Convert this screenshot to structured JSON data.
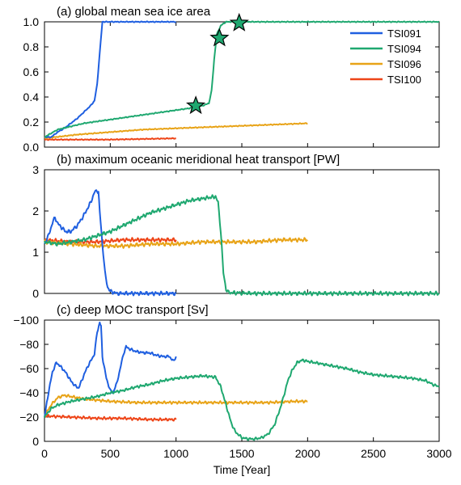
{
  "chart_data": [
    {
      "type": "line",
      "title": "(a) global mean sea ice area",
      "xlim": [
        0,
        3000
      ],
      "ylim": [
        0,
        1
      ],
      "yticks": [
        0,
        0.2,
        0.4,
        0.6,
        0.8,
        1
      ],
      "ytick_labels": [
        "0.0",
        "0.2",
        "0.4",
        "0.6",
        "0.8",
        "1.0"
      ],
      "legend_position": "top-right",
      "series": [
        {
          "name": "TSI091",
          "color": "#1f5fe0",
          "points": [
            [
              0,
              0.08
            ],
            [
              50,
              0.08
            ],
            [
              100,
              0.12
            ],
            [
              150,
              0.15
            ],
            [
              200,
              0.19
            ],
            [
              250,
              0.23
            ],
            [
              300,
              0.28
            ],
            [
              350,
              0.33
            ],
            [
              380,
              0.37
            ],
            [
              400,
              0.5
            ],
            [
              420,
              0.75
            ],
            [
              440,
              1
            ],
            [
              1000,
              1
            ]
          ]
        },
        {
          "name": "TSI094",
          "color": "#1fa870",
          "points": [
            [
              0,
              0.08
            ],
            [
              100,
              0.14
            ],
            [
              300,
              0.19
            ],
            [
              500,
              0.22
            ],
            [
              700,
              0.25
            ],
            [
              900,
              0.28
            ],
            [
              1100,
              0.31
            ],
            [
              1200,
              0.33
            ],
            [
              1250,
              0.35
            ],
            [
              1270,
              0.45
            ],
            [
              1290,
              0.7
            ],
            [
              1310,
              0.9
            ],
            [
              1340,
              0.97
            ],
            [
              1380,
              1
            ],
            [
              3000,
              1
            ]
          ]
        },
        {
          "name": "TSI096",
          "color": "#e8a317",
          "points": [
            [
              0,
              0.07
            ],
            [
              250,
              0.1
            ],
            [
              500,
              0.12
            ],
            [
              750,
              0.14
            ],
            [
              1000,
              0.15
            ],
            [
              1250,
              0.16
            ],
            [
              1500,
              0.17
            ],
            [
              1750,
              0.18
            ],
            [
              2000,
              0.19
            ]
          ]
        },
        {
          "name": "TSI100",
          "color": "#ee4518",
          "points": [
            [
              0,
              0.06
            ],
            [
              500,
              0.06
            ],
            [
              1000,
              0.07
            ]
          ]
        }
      ],
      "markers": [
        {
          "x": 1150,
          "y": 0.33,
          "symbol": "star",
          "color": "#1fa870"
        },
        {
          "x": 1330,
          "y": 0.87,
          "symbol": "star",
          "color": "#1fa870"
        },
        {
          "x": 1480,
          "y": 0.99,
          "symbol": "star",
          "color": "#1fa870"
        }
      ]
    },
    {
      "type": "line",
      "title": "(b) maximum oceanic meridional heat transport [PW]",
      "xlim": [
        0,
        3000
      ],
      "ylim": [
        0,
        3
      ],
      "yticks": [
        0,
        1,
        2,
        3
      ],
      "ytick_labels": [
        "0",
        "1",
        "2",
        "3"
      ],
      "series": [
        {
          "name": "TSI091",
          "color": "#1f5fe0",
          "points": [
            [
              0,
              1.2
            ],
            [
              30,
              1.4
            ],
            [
              60,
              1.7
            ],
            [
              80,
              1.85
            ],
            [
              100,
              1.7
            ],
            [
              130,
              1.6
            ],
            [
              160,
              1.5
            ],
            [
              200,
              1.5
            ],
            [
              250,
              1.65
            ],
            [
              300,
              1.9
            ],
            [
              350,
              2.2
            ],
            [
              380,
              2.45
            ],
            [
              400,
              2.5
            ],
            [
              410,
              2.45
            ],
            [
              420,
              2.0
            ],
            [
              440,
              1.2
            ],
            [
              460,
              0.5
            ],
            [
              480,
              0.15
            ],
            [
              500,
              0.05
            ],
            [
              550,
              0.0
            ],
            [
              1000,
              0.0
            ]
          ]
        },
        {
          "name": "TSI094",
          "color": "#1fa870",
          "points": [
            [
              0,
              1.25
            ],
            [
              100,
              1.2
            ],
            [
              200,
              1.25
            ],
            [
              300,
              1.3
            ],
            [
              400,
              1.4
            ],
            [
              500,
              1.5
            ],
            [
              600,
              1.65
            ],
            [
              700,
              1.8
            ],
            [
              800,
              1.95
            ],
            [
              900,
              2.05
            ],
            [
              1000,
              2.15
            ],
            [
              1100,
              2.25
            ],
            [
              1200,
              2.3
            ],
            [
              1300,
              2.35
            ],
            [
              1320,
              2.2
            ],
            [
              1340,
              1.5
            ],
            [
              1360,
              0.5
            ],
            [
              1380,
              0.1
            ],
            [
              1400,
              0.02
            ],
            [
              1600,
              0.0
            ],
            [
              3000,
              0.0
            ]
          ]
        },
        {
          "name": "TSI096",
          "color": "#e8a317",
          "points": [
            [
              0,
              1.25
            ],
            [
              200,
              1.2
            ],
            [
              400,
              1.15
            ],
            [
              600,
              1.15
            ],
            [
              800,
              1.2
            ],
            [
              1000,
              1.2
            ],
            [
              1200,
              1.25
            ],
            [
              1400,
              1.25
            ],
            [
              1600,
              1.25
            ],
            [
              1800,
              1.3
            ],
            [
              2000,
              1.3
            ]
          ]
        },
        {
          "name": "TSI100",
          "color": "#ee4518",
          "points": [
            [
              0,
              1.3
            ],
            [
              200,
              1.25
            ],
            [
              400,
              1.25
            ],
            [
              600,
              1.3
            ],
            [
              800,
              1.3
            ],
            [
              1000,
              1.3
            ]
          ]
        }
      ]
    },
    {
      "type": "line",
      "title": "(c) deep MOC transport [Sv]",
      "xlim": [
        0,
        3000
      ],
      "ylim": [
        0,
        -100
      ],
      "yticks": [
        0,
        -20,
        -40,
        -60,
        -80,
        -100
      ],
      "ytick_labels": [
        "0",
        "−20",
        "−40",
        "−60",
        "−80",
        "−100"
      ],
      "xticks": [
        0,
        500,
        1000,
        1500,
        2000,
        2500,
        3000
      ],
      "xtick_labels": [
        "0",
        "500",
        "1000",
        "1500",
        "2000",
        "2500",
        "3000"
      ],
      "xlabel": "Time [Year]",
      "series": [
        {
          "name": "TSI091",
          "color": "#1f5fe0",
          "points": [
            [
              0,
              -20
            ],
            [
              30,
              -40
            ],
            [
              60,
              -57
            ],
            [
              90,
              -65
            ],
            [
              120,
              -62
            ],
            [
              160,
              -57
            ],
            [
              200,
              -50
            ],
            [
              230,
              -46
            ],
            [
              260,
              -44
            ],
            [
              290,
              -52
            ],
            [
              320,
              -60
            ],
            [
              350,
              -66
            ],
            [
              380,
              -72
            ],
            [
              400,
              -90
            ],
            [
              420,
              -98
            ],
            [
              430,
              -95
            ],
            [
              440,
              -70
            ],
            [
              470,
              -52
            ],
            [
              500,
              -42
            ],
            [
              520,
              -40
            ],
            [
              550,
              -48
            ],
            [
              580,
              -62
            ],
            [
              600,
              -72
            ],
            [
              620,
              -78
            ],
            [
              650,
              -76
            ],
            [
              700,
              -74
            ],
            [
              760,
              -73
            ],
            [
              800,
              -73
            ],
            [
              850,
              -71
            ],
            [
              900,
              -70
            ],
            [
              950,
              -70
            ],
            [
              980,
              -66
            ],
            [
              1000,
              -70
            ]
          ]
        },
        {
          "name": "TSI094",
          "color": "#1fa870",
          "points": [
            [
              0,
              -20
            ],
            [
              50,
              -27
            ],
            [
              100,
              -30
            ],
            [
              200,
              -33
            ],
            [
              300,
              -35
            ],
            [
              400,
              -37
            ],
            [
              500,
              -40
            ],
            [
              600,
              -42
            ],
            [
              700,
              -45
            ],
            [
              800,
              -47
            ],
            [
              900,
              -50
            ],
            [
              1000,
              -52
            ],
            [
              1100,
              -53
            ],
            [
              1200,
              -54
            ],
            [
              1300,
              -53
            ],
            [
              1340,
              -45
            ],
            [
              1380,
              -30
            ],
            [
              1420,
              -15
            ],
            [
              1450,
              -8
            ],
            [
              1500,
              -3
            ],
            [
              1550,
              -2
            ],
            [
              1600,
              -2
            ],
            [
              1650,
              -3
            ],
            [
              1700,
              -6
            ],
            [
              1750,
              -14
            ],
            [
              1800,
              -30
            ],
            [
              1850,
              -50
            ],
            [
              1880,
              -58
            ],
            [
              1920,
              -65
            ],
            [
              1960,
              -67
            ],
            [
              2000,
              -66
            ],
            [
              2100,
              -64
            ],
            [
              2200,
              -62
            ],
            [
              2300,
              -60
            ],
            [
              2400,
              -57
            ],
            [
              2500,
              -55
            ],
            [
              2600,
              -54
            ],
            [
              2700,
              -53
            ],
            [
              2800,
              -52
            ],
            [
              2900,
              -50
            ],
            [
              2950,
              -47
            ],
            [
              3000,
              -45
            ]
          ]
        },
        {
          "name": "TSI096",
          "color": "#e8a317",
          "points": [
            [
              0,
              -21
            ],
            [
              50,
              -30
            ],
            [
              100,
              -36
            ],
            [
              150,
              -38
            ],
            [
              200,
              -37
            ],
            [
              300,
              -35
            ],
            [
              400,
              -34
            ],
            [
              500,
              -33
            ],
            [
              700,
              -32
            ],
            [
              900,
              -32
            ],
            [
              1100,
              -32
            ],
            [
              1300,
              -32
            ],
            [
              1500,
              -32
            ],
            [
              1700,
              -32
            ],
            [
              1900,
              -33
            ],
            [
              2000,
              -33
            ]
          ]
        },
        {
          "name": "TSI100",
          "color": "#ee4518",
          "points": [
            [
              0,
              -21
            ],
            [
              200,
              -20
            ],
            [
              400,
              -19
            ],
            [
              600,
              -19
            ],
            [
              800,
              -18
            ],
            [
              1000,
              -18
            ]
          ]
        }
      ]
    }
  ]
}
